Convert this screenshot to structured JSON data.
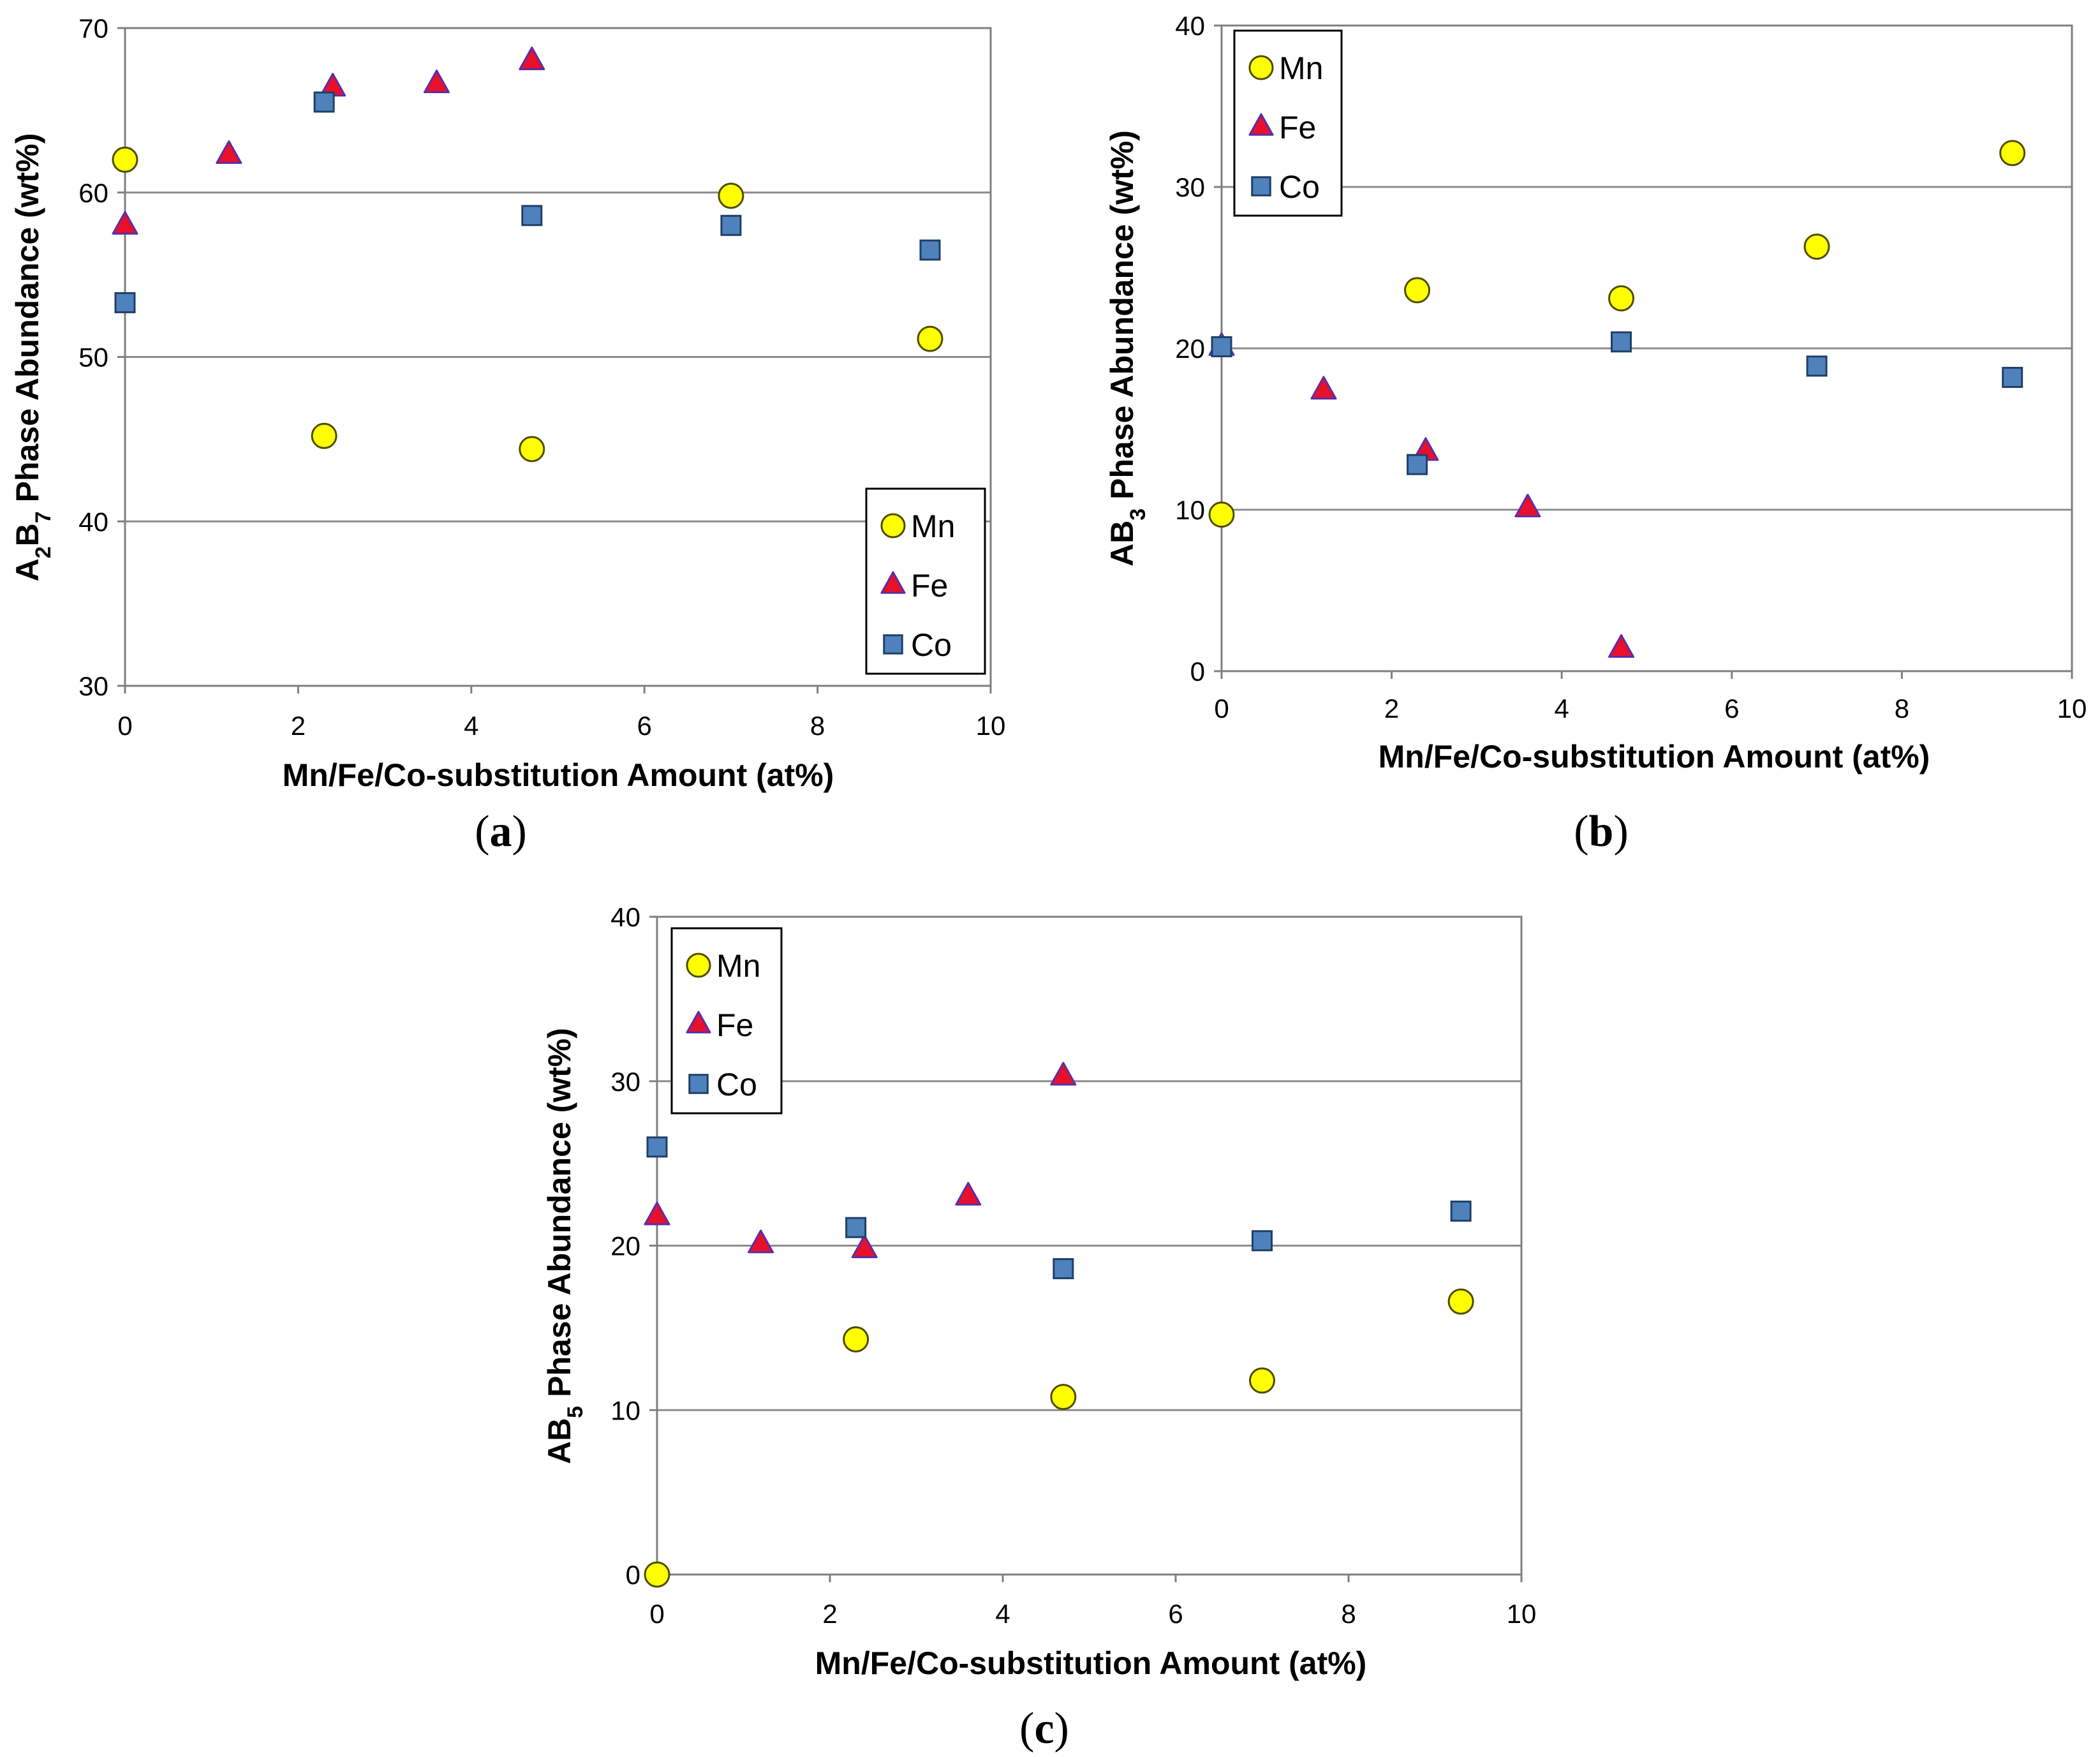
{
  "figure": {
    "panels": [
      {
        "paren_open": "(",
        "letter": "a",
        "paren_close": ")"
      },
      {
        "paren_open": "(",
        "letter": "b",
        "paren_close": ")"
      },
      {
        "paren_open": "(",
        "letter": "c",
        "paren_close": ")"
      }
    ]
  },
  "colors": {
    "mn_fill": "#ffff00",
    "mn_stroke": "#4d4d00",
    "fe_fill": "#e8102a",
    "fe_stroke": "#5b2ea8",
    "co_fill": "#4f81bd",
    "co_stroke": "#1f3f66",
    "gridline": "#8c8c8c",
    "axis": "#7f7f7f"
  },
  "chart_data": [
    {
      "type": "scatter",
      "title": "",
      "xlabel": "Mn/Fe/Co-substitution Amount (at%)",
      "ylabel": {
        "pre": "A",
        "sub1": "2",
        "mid": "B",
        "sub2": "7",
        "post": " Phase Abundance (wt%)"
      },
      "xlim": [
        0,
        10
      ],
      "ylim": [
        30,
        70
      ],
      "xticks": [
        0,
        2,
        4,
        6,
        8,
        10
      ],
      "yticks": [
        30,
        40,
        50,
        60,
        70
      ],
      "gridlines_y": [
        40,
        50,
        60
      ],
      "legend_position": "bottom-right",
      "series": [
        {
          "name": "Mn",
          "marker": "circle",
          "points": [
            [
              0,
              62.0
            ],
            [
              2.3,
              45.2
            ],
            [
              4.7,
              44.4
            ],
            [
              7.0,
              59.8
            ],
            [
              9.3,
              51.1
            ]
          ]
        },
        {
          "name": "Fe",
          "marker": "triangle",
          "points": [
            [
              0,
              58.0
            ],
            [
              1.2,
              62.3
            ],
            [
              2.4,
              66.4
            ],
            [
              3.6,
              66.6
            ],
            [
              4.7,
              68.0
            ]
          ]
        },
        {
          "name": "Co",
          "marker": "square",
          "points": [
            [
              0,
              53.3
            ],
            [
              2.3,
              65.5
            ],
            [
              4.7,
              58.6
            ],
            [
              7.0,
              58.0
            ],
            [
              9.3,
              56.5
            ]
          ]
        }
      ]
    },
    {
      "type": "scatter",
      "title": "",
      "xlabel": "Mn/Fe/Co-substitution Amount (at%)",
      "ylabel": {
        "pre": "AB",
        "sub1": "3",
        "mid": "",
        "sub2": "",
        "post": " Phase Abundance (wt%)"
      },
      "xlim": [
        0,
        10
      ],
      "ylim": [
        0,
        40
      ],
      "xticks": [
        0,
        2,
        4,
        6,
        8,
        10
      ],
      "yticks": [
        0,
        10,
        20,
        30,
        40
      ],
      "gridlines_y": [
        10,
        20,
        30
      ],
      "legend_position": "top-left",
      "series": [
        {
          "name": "Mn",
          "marker": "circle",
          "points": [
            [
              0,
              9.7
            ],
            [
              2.3,
              23.6
            ],
            [
              4.7,
              23.1
            ],
            [
              7.0,
              26.3
            ],
            [
              9.3,
              32.1
            ]
          ]
        },
        {
          "name": "Fe",
          "marker": "triangle",
          "points": [
            [
              0,
              20.1
            ],
            [
              1.2,
              17.4
            ],
            [
              2.4,
              13.6
            ],
            [
              3.6,
              10.1
            ],
            [
              4.7,
              1.4
            ]
          ]
        },
        {
          "name": "Co",
          "marker": "square",
          "points": [
            [
              0,
              20.1
            ],
            [
              2.3,
              12.8
            ],
            [
              4.7,
              20.4
            ],
            [
              7.0,
              18.9
            ],
            [
              9.3,
              18.2
            ]
          ]
        }
      ]
    },
    {
      "type": "scatter",
      "title": "",
      "xlabel": "Mn/Fe/Co-substitution Amount (at%)",
      "ylabel": {
        "pre": "AB",
        "sub1": "5",
        "mid": "",
        "sub2": "",
        "post": " Phase Abundance (wt%)"
      },
      "xlim": [
        0,
        10
      ],
      "ylim": [
        0,
        40
      ],
      "xticks": [
        0,
        2,
        4,
        6,
        8,
        10
      ],
      "yticks": [
        0,
        10,
        20,
        30,
        40
      ],
      "gridlines_y": [
        10,
        20,
        30
      ],
      "legend_position": "top-left",
      "series": [
        {
          "name": "Mn",
          "marker": "circle",
          "points": [
            [
              0,
              0.0
            ],
            [
              2.3,
              14.3
            ],
            [
              4.7,
              10.8
            ],
            [
              7.0,
              11.8
            ],
            [
              9.3,
              16.6
            ]
          ]
        },
        {
          "name": "Fe",
          "marker": "triangle",
          "points": [
            [
              0,
              21.8
            ],
            [
              1.2,
              20.1
            ],
            [
              2.4,
              19.8
            ],
            [
              3.6,
              23.0
            ],
            [
              4.7,
              30.3
            ]
          ]
        },
        {
          "name": "Co",
          "marker": "square",
          "points": [
            [
              0,
              26.0
            ],
            [
              2.3,
              21.1
            ],
            [
              4.7,
              18.6
            ],
            [
              7.0,
              20.3
            ],
            [
              9.3,
              22.1
            ]
          ]
        }
      ]
    }
  ]
}
